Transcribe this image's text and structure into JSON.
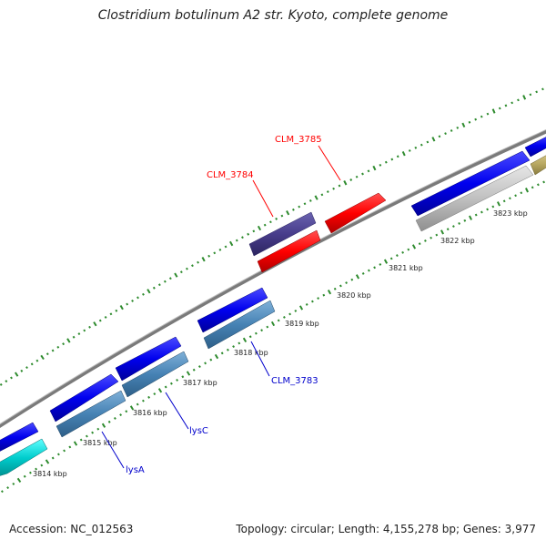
{
  "title": "Clostridium botulinum A2 str. Kyoto, complete genome",
  "footer": {
    "accession": "Accession: NC_012563",
    "summary": "Topology: circular; Length: 4,155,278 bp; Genes: 3,977"
  },
  "scale": {
    "ticks": [
      "3814 kbp",
      "3815 kbp",
      "3816 kbp",
      "3817 kbp",
      "3818 kbp",
      "3819 kbp",
      "3820 kbp",
      "3821 kbp",
      "3822 kbp",
      "3823 kbp"
    ]
  },
  "gene_labels": [
    {
      "name": "CLM_3785",
      "color": "#ff0000"
    },
    {
      "name": "CLM_3784",
      "color": "#ff0000"
    },
    {
      "name": "CLM_3783",
      "color": "#0000cc"
    },
    {
      "name": "lysC",
      "color": "#0000cc"
    },
    {
      "name": "lysA",
      "color": "#0000cc"
    }
  ],
  "colors": {
    "backbone": "#888888",
    "forward_cds": "#0000ee",
    "reverse_cds": "#4682b4",
    "rna": "#ff0000",
    "gap_marks": "#2e8b2e",
    "purple_feature": "#483d8b",
    "silver_feature": "#c0c0c0",
    "olive_feature": "#b8a862",
    "cyan_feature": "#00cccc"
  }
}
